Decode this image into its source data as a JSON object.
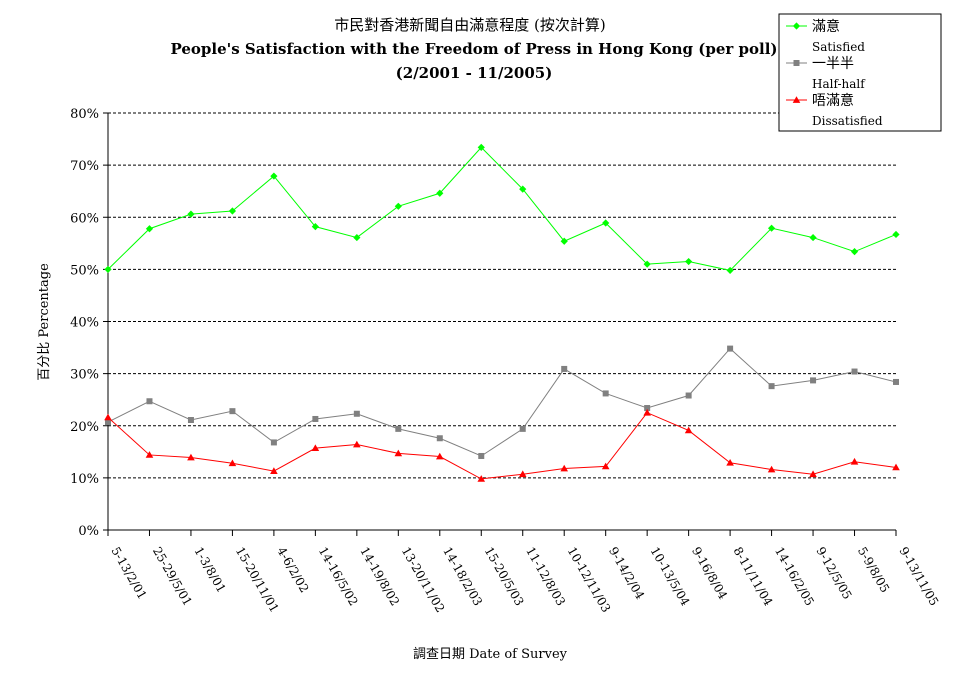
{
  "chart_data": {
    "type": "line",
    "title": "市民對香港新聞自由滿意程度 (按次計算)",
    "subtitle": "People's Satisfaction with the Freedom of Press in Hong Kong (per poll)",
    "subtitle2": "(2/2001 - 11/2005)",
    "xlabel": "調查日期 Date of Survey",
    "ylabel": "百分比 Percentage",
    "ylim": [
      0,
      80
    ],
    "yticks": [
      "0%",
      "10%",
      "20%",
      "30%",
      "40%",
      "50%",
      "60%",
      "70%",
      "80%"
    ],
    "grid": "horizontal-dashed",
    "legend_position": "top-right",
    "categories": [
      "5-13/2/01",
      "25-29/5/01",
      "1-3/8/01",
      "15-20/11/01",
      "4-6/2/02",
      "14-16/5/02",
      "14-19/8/02",
      "13-20/11/02",
      "14-18/2/03",
      "15-20/5/03",
      "11-12/8/03",
      "10-12/11/03",
      "9-14/2/04",
      "10-13/5/04",
      "9-16/8/04",
      "8-11/11/04",
      "14-16/2/05",
      "9-12/5/05",
      "5-9/8/05",
      "9-13/11/05"
    ],
    "series": [
      {
        "name": "滿意",
        "name_en": "Satisfied",
        "color": "#00ff00",
        "marker": "diamond",
        "values": [
          50.0,
          57.8,
          60.6,
          61.2,
          67.9,
          58.2,
          56.1,
          62.1,
          64.6,
          73.4,
          65.4,
          55.4,
          58.9,
          51.0,
          51.5,
          49.8,
          57.9,
          56.1,
          53.4,
          56.7
        ]
      },
      {
        "name": "一半半",
        "name_en": "Half-half",
        "color": "#808080",
        "marker": "square",
        "values": [
          20.7,
          24.7,
          21.1,
          22.8,
          16.8,
          21.3,
          22.3,
          19.4,
          17.6,
          14.2,
          19.4,
          30.9,
          26.2,
          23.4,
          25.8,
          34.8,
          27.6,
          28.7,
          30.4,
          28.4
        ]
      },
      {
        "name": "唔滿意",
        "name_en": "Dissatisfied",
        "color": "#ff0000",
        "marker": "triangle",
        "values": [
          21.6,
          14.4,
          13.9,
          12.8,
          11.3,
          15.7,
          16.4,
          14.7,
          14.1,
          9.8,
          10.7,
          11.8,
          12.2,
          22.5,
          19.1,
          12.9,
          11.6,
          10.7,
          13.1,
          12.0
        ]
      }
    ]
  }
}
